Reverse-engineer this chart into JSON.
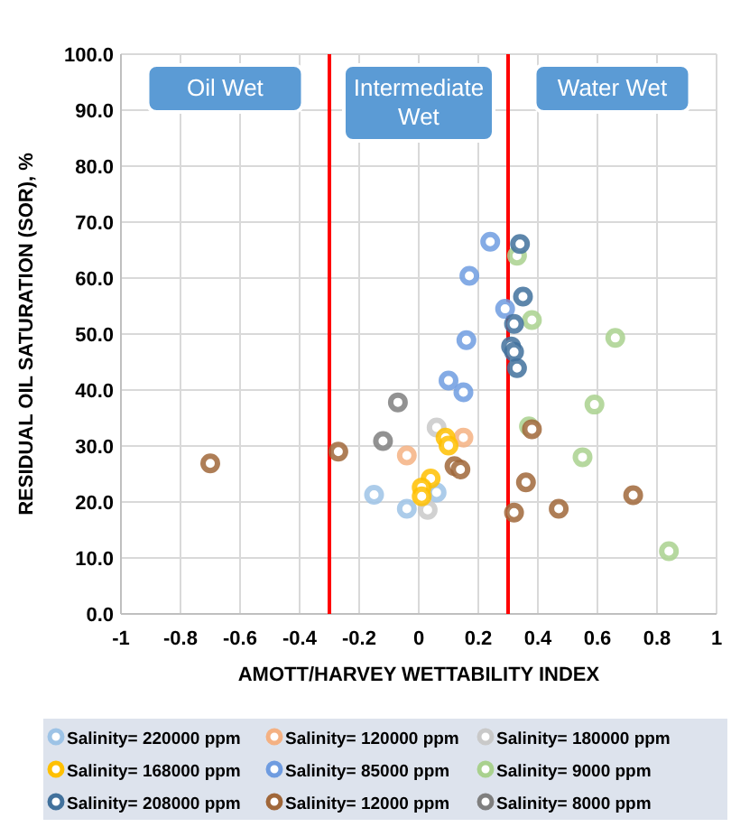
{
  "chart_data": {
    "type": "scatter",
    "xlabel": "AMOTT/HARVEY  WETTABILITY INDEX",
    "ylabel": "RESIDUAL OIL SATURATION (SOR), %",
    "xlim": [
      -1,
      1
    ],
    "xticks": [
      -1,
      -0.8,
      -0.6,
      -0.4,
      -0.2,
      0,
      0.2,
      0.4,
      0.6,
      0.8,
      1
    ],
    "ylim": [
      0,
      100
    ],
    "yticks": [
      {
        "value": 0,
        "label": "0.0"
      },
      {
        "value": 10,
        "label": "10.0"
      },
      {
        "value": 20,
        "label": "20.0"
      },
      {
        "value": 30,
        "label": "30.0"
      },
      {
        "value": 40,
        "label": "40.0"
      },
      {
        "value": 50,
        "label": "50.0"
      },
      {
        "value": 60,
        "label": "60.0"
      },
      {
        "value": 70,
        "label": "70.0"
      },
      {
        "value": 80,
        "label": "80.0"
      },
      {
        "value": 90,
        "label": "90.0"
      },
      {
        "value": 100,
        "label": "100.0"
      }
    ],
    "grid": true,
    "legend": "bottom",
    "marker": "circle",
    "ref_lines": [
      {
        "axis": "x",
        "value": -0.3,
        "color": "#ff0000"
      },
      {
        "axis": "x",
        "value": 0.3,
        "color": "#ff0000"
      }
    ],
    "annotations": [
      "Oil Wet",
      "Intermediate Wet",
      "Water Wet"
    ],
    "series": [
      {
        "name": "Salinity= 220000 ppm",
        "color": "#9dc3e6",
        "x": [
          -0.15,
          -0.04,
          0.06
        ],
        "values": [
          21.3,
          18.8,
          21.7
        ]
      },
      {
        "name": "Salinity= 120000 ppm",
        "color": "#f4b183",
        "x": [
          -0.04,
          0.15
        ],
        "values": [
          28.3,
          31.5
        ]
      },
      {
        "name": "Salinity= 180000 ppm",
        "color": "#c9c9c9",
        "x": [
          0.06,
          0.03
        ],
        "values": [
          33.3,
          18.6
        ]
      },
      {
        "name": "Salinity= 168000 ppm",
        "color": "#ffc000",
        "x": [
          0.09,
          0.1,
          0.04,
          0.01,
          0.01
        ],
        "values": [
          31.5,
          30.1,
          24.2,
          22.6,
          21.0
        ]
      },
      {
        "name": "Salinity= 85000 ppm",
        "color": "#6f9ce0",
        "x": [
          0.24,
          0.17,
          0.16,
          0.1,
          0.15,
          0.29
        ],
        "values": [
          66.5,
          60.4,
          48.9,
          41.7,
          39.6,
          54.5
        ]
      },
      {
        "name": "Salinity= 9000 ppm",
        "color": "#a9d18e",
        "x": [
          0.33,
          0.38,
          0.66,
          0.59,
          0.37,
          0.55,
          0.84
        ],
        "values": [
          64.0,
          52.5,
          49.3,
          37.4,
          33.5,
          28.0,
          11.2
        ]
      },
      {
        "name": "Salinity= 208000 ppm",
        "color": "#41719c",
        "x": [
          0.34,
          0.35,
          0.32,
          0.31,
          0.32,
          0.33
        ],
        "values": [
          66.1,
          56.7,
          51.8,
          47.8,
          46.8,
          43.9
        ]
      },
      {
        "name": "Salinity= 12000 ppm",
        "color": "#a0673a",
        "x": [
          0.38,
          0.36,
          0.32,
          0.47,
          0.72,
          0.12,
          0.14,
          -0.7,
          -0.27
        ],
        "values": [
          33.0,
          23.5,
          18.1,
          18.8,
          21.2,
          26.4,
          25.8,
          26.9,
          29.0
        ]
      },
      {
        "name": "Salinity= 8000 ppm",
        "color": "#7f7f7f",
        "x": [
          -0.07,
          -0.12
        ],
        "values": [
          37.8,
          30.9
        ]
      }
    ]
  }
}
